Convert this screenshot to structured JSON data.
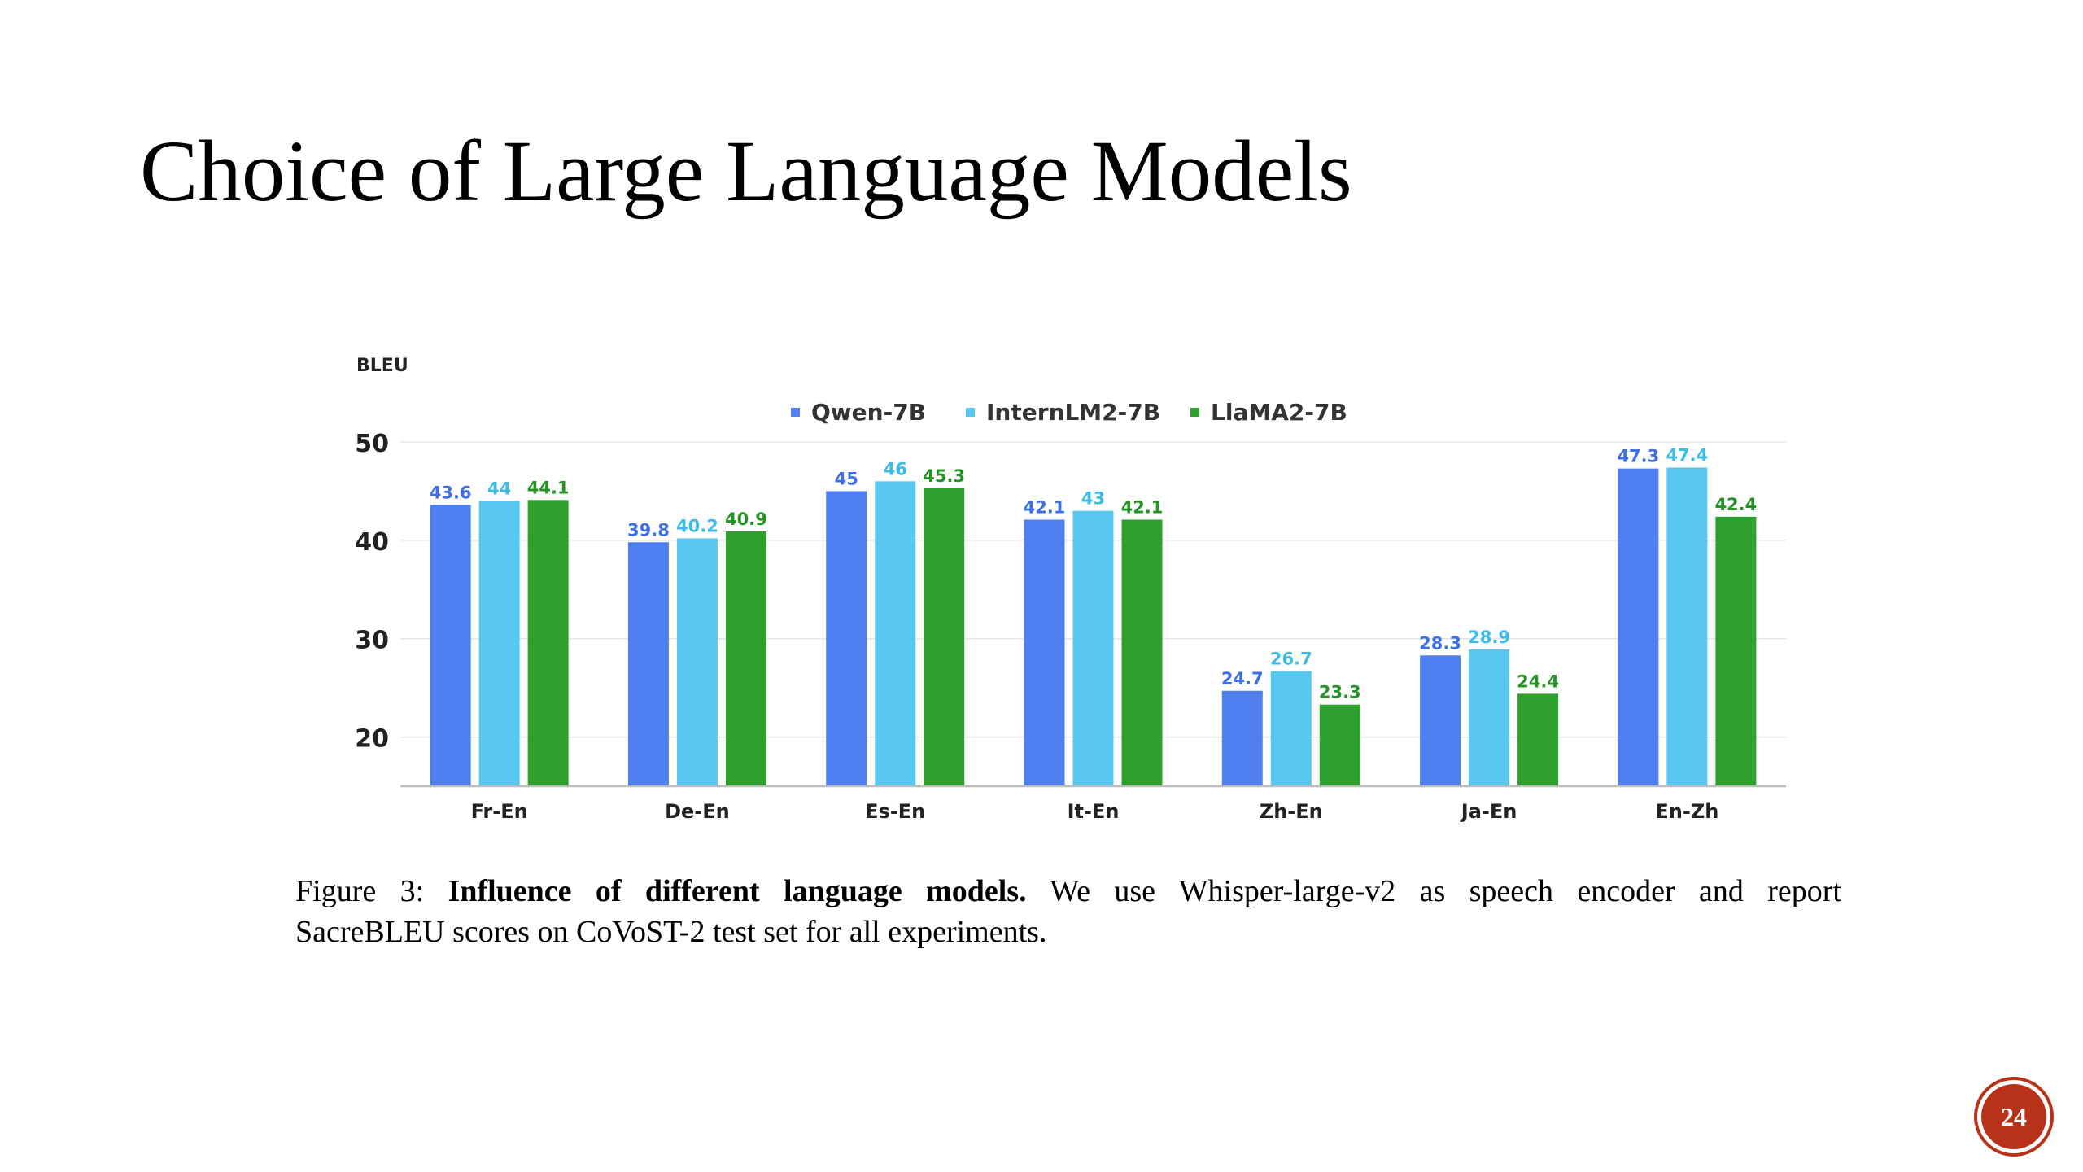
{
  "slide": {
    "title": "Choice of Large Language Models",
    "page_number": "24",
    "badge_color": "#b8321a"
  },
  "caption": {
    "prefix": "Figure 3:",
    "bold": "Influence of different language models.",
    "rest_line1": "We use Whisper-large-v2 as speech encoder and report",
    "line2": "SacreBLEU scores on CoVoST-2 test set for all experiments."
  },
  "chart_data": {
    "type": "bar",
    "title": "",
    "ylabel": "BLEU",
    "xlabel": "",
    "ylim": [
      15,
      51
    ],
    "yticks": [
      20,
      30,
      40,
      50
    ],
    "grid": true,
    "legend_position": "top-center",
    "categories": [
      "Fr-En",
      "De-En",
      "Es-En",
      "It-En",
      "Zh-En",
      "Ja-En",
      "En-Zh"
    ],
    "series": [
      {
        "name": "Qwen-7B",
        "color": "#4f7ff0",
        "label_color": "#3c6fe8",
        "values": [
          43.6,
          39.8,
          45,
          42.1,
          24.7,
          28.3,
          47.3
        ]
      },
      {
        "name": "InternLM2-7B",
        "color": "#58c8f0",
        "label_color": "#3cbce8",
        "values": [
          44,
          40.2,
          46,
          43,
          26.7,
          28.9,
          47.4
        ]
      },
      {
        "name": "LlaMA2-7B",
        "color": "#2ea02e",
        "label_color": "#239323",
        "values": [
          44.1,
          40.9,
          45.3,
          42.1,
          23.3,
          24.4,
          42.4
        ]
      }
    ]
  }
}
